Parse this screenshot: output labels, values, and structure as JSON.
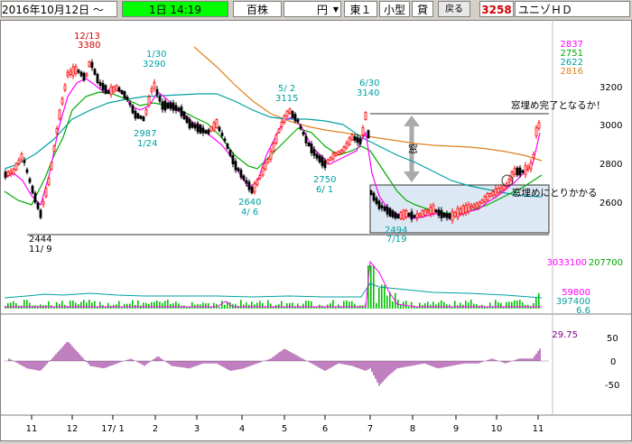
{
  "toolbar": {
    "date": "2016年10月12日 ～",
    "period": "1日 14:19",
    "count_label": "百株",
    "currency": "円",
    "market": "東１",
    "size": "小型",
    "lending": "貸",
    "back_button": "戻る",
    "code": "3258",
    "name": "ユニゾＨＤ"
  },
  "colors": {
    "price_up": "#ff0000",
    "price_down": "#000000",
    "ma_short": "#ff00ff",
    "ma_mid": "#00aa00",
    "ma_long": "#00a0a0",
    "ma_longest": "#e08020",
    "box_fill": "#dde8f5"
  },
  "legend": {
    "ma1": "2837",
    "ma2": "2751",
    "ma3": "2622",
    "ma4": "2816",
    "volume": "3033100",
    "volume2": "207700",
    "vol_avg1": "59800",
    "vol_avg2": "397400",
    "vol_ratio": "6.6",
    "osc": "29.75"
  },
  "annotations": {
    "high_1213": "12/13",
    "high_1213_val": "3380",
    "high_130": "1/30",
    "high_130_val": "3290",
    "low_124_val": "2987",
    "low_124": "1/24",
    "high_52": "5/ 2",
    "high_52_val": "3115",
    "high_630": "6/30",
    "high_630_val": "3140",
    "low_46_val": "2640",
    "low_46": "4/ 6",
    "low_61_val": "2750",
    "low_61": "6/ 1",
    "low_119_val": "2444",
    "low_119": "11/ 9",
    "low_719_val": "2494",
    "low_719": "7/19",
    "gap_label": "窓",
    "fill_complete": "窓埋め完了となるか！",
    "fill_start": "窓埋めにとりかかる"
  },
  "chart_data": [
    {
      "type": "candlestick",
      "title": "",
      "x_ticks": [
        "11",
        "12",
        "17/ 1",
        "2",
        "3",
        "4",
        "5",
        "6",
        "7",
        "8",
        "9",
        "10",
        "11"
      ],
      "y_ticks": [
        3200,
        3000,
        2800,
        2600
      ],
      "ylim": [
        2380,
        3450
      ],
      "series_names": [
        "2837",
        "2751",
        "2622",
        "2816"
      ]
    },
    {
      "type": "bar",
      "title": "volume",
      "y_values_shown": [
        "3033100",
        "59800",
        "397400",
        "6.6"
      ]
    },
    {
      "type": "bar",
      "title": "oscillator",
      "y_ticks": [
        50,
        0,
        -50
      ],
      "ylim": [
        -70,
        80
      ]
    }
  ]
}
